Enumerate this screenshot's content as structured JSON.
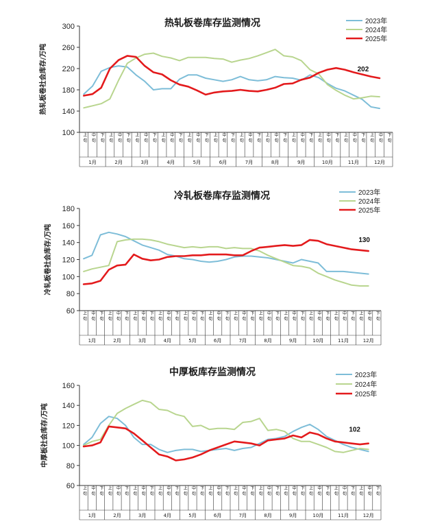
{
  "colors": {
    "y2023": "#7dbdd8",
    "y2024": "#b8d58e",
    "y2025": "#e31a1c"
  },
  "months": [
    "1月",
    "2月",
    "3月",
    "4月",
    "5月",
    "6月",
    "7月",
    "8月",
    "9月",
    "10月",
    "11月",
    "12月"
  ],
  "subperiods": [
    "上旬",
    "中旬",
    "下旬"
  ],
  "chart_data": [
    {
      "type": "line",
      "title": "热轧板卷库存监测情况",
      "ylabel": "热轧板卷社会库存/万吨",
      "ylim": [
        100,
        300
      ],
      "yticks": [
        100,
        140,
        180,
        220,
        260,
        300
      ],
      "end_label": "202",
      "series": [
        {
          "name": "2023年",
          "values": [
            172,
            187,
            215,
            222,
            225,
            223,
            208,
            196,
            180,
            182,
            182,
            200,
            208,
            208,
            202,
            199,
            196,
            199,
            205,
            199,
            197,
            199,
            205,
            203,
            202,
            198,
            208,
            203,
            192,
            183,
            178,
            170,
            162,
            148,
            145
          ]
        },
        {
          "name": "2024年",
          "values": [
            146,
            150,
            154,
            163,
            198,
            230,
            240,
            247,
            249,
            243,
            240,
            235,
            241,
            241,
            241,
            239,
            238,
            232,
            236,
            239,
            244,
            250,
            256,
            244,
            242,
            235,
            218,
            210,
            190,
            179,
            170,
            163,
            165,
            168,
            167
          ]
        },
        {
          "name": "2025年",
          "values": [
            169,
            172,
            184,
            220,
            236,
            244,
            242,
            225,
            213,
            209,
            198,
            190,
            186,
            179,
            171,
            175,
            177,
            178,
            180,
            178,
            177,
            180,
            184,
            191,
            192,
            199,
            203,
            212,
            218,
            221,
            218,
            213,
            209,
            205,
            202
          ]
        }
      ]
    },
    {
      "type": "line",
      "title": "冷轧板卷库存监测情况",
      "ylabel": "冷轧板卷社会库存/万吨",
      "ylim": [
        60,
        180
      ],
      "yticks": [
        60,
        80,
        100,
        120,
        140,
        160,
        180
      ],
      "end_label": "130",
      "series": [
        {
          "name": "2023年",
          "values": [
            121,
            125,
            149,
            152,
            150,
            147,
            142,
            137,
            134,
            131,
            126,
            124,
            121,
            120,
            118,
            117,
            118,
            120,
            123,
            124,
            124,
            123,
            122,
            120,
            118,
            116,
            120,
            118,
            116,
            106,
            106,
            106,
            105,
            104,
            103
          ]
        },
        {
          "name": "2024年",
          "values": [
            106,
            109,
            111,
            113,
            141,
            143,
            144,
            144,
            143,
            141,
            138,
            136,
            134,
            135,
            134,
            135,
            135,
            133,
            134,
            133,
            133,
            130,
            125,
            121,
            117,
            113,
            112,
            110,
            104,
            100,
            96,
            93,
            90,
            89,
            89
          ]
        },
        {
          "name": "2025年",
          "values": [
            91,
            92,
            95,
            108,
            113,
            114,
            126,
            121,
            119,
            120,
            123,
            124,
            124,
            125,
            125,
            126,
            126,
            126,
            125,
            125,
            130,
            134,
            135,
            136,
            137,
            136,
            137,
            143,
            142,
            138,
            136,
            134,
            132,
            131,
            130
          ]
        }
      ]
    },
    {
      "type": "line",
      "title": "中厚板库存监测情况",
      "ylabel": "中厚板社会库存/万吨",
      "ylim": [
        60,
        160
      ],
      "yticks": [
        60,
        80,
        100,
        120,
        140,
        160
      ],
      "end_label": "102",
      "series": [
        {
          "name": "2023年",
          "values": [
            101,
            108,
            122,
            129,
            127,
            120,
            108,
            101,
            101,
            96,
            93,
            95,
            96,
            96,
            94,
            95,
            96,
            97,
            95,
            97,
            98,
            102,
            106,
            107,
            109,
            114,
            118,
            121,
            116,
            109,
            105,
            101,
            98,
            96,
            94
          ]
        },
        {
          "name": "2024年",
          "values": [
            100,
            104,
            106,
            120,
            132,
            137,
            141,
            145,
            143,
            136,
            135,
            131,
            129,
            119,
            120,
            116,
            117,
            117,
            116,
            123,
            124,
            127,
            115,
            116,
            114,
            107,
            104,
            104,
            101,
            98,
            94,
            93,
            95,
            97,
            96
          ]
        },
        {
          "name": "2025年",
          "values": [
            99,
            100,
            103,
            119,
            118,
            117,
            112,
            105,
            98,
            91,
            89,
            85,
            86,
            88,
            91,
            95,
            98,
            101,
            104,
            103,
            102,
            100,
            105,
            106,
            107,
            110,
            108,
            113,
            111,
            107,
            104,
            103,
            102,
            101,
            102
          ]
        }
      ]
    }
  ]
}
